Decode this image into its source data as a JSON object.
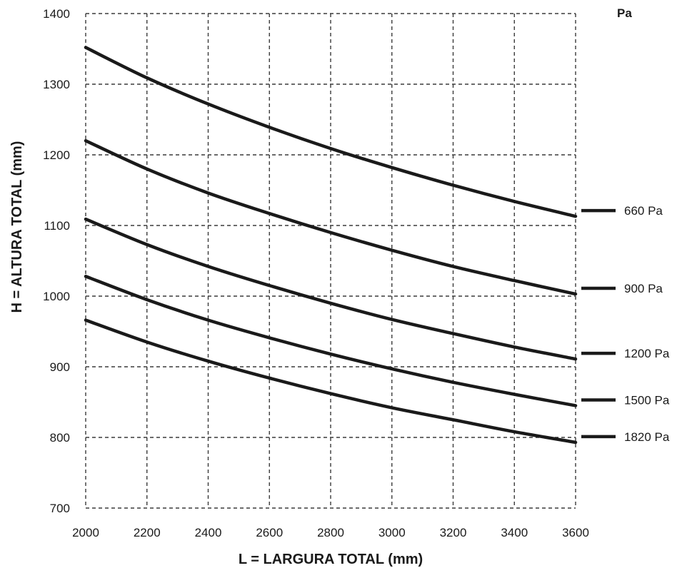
{
  "chart_data": {
    "type": "line",
    "title": "",
    "xlabel": "L = LARGURA  TOTAL (mm)",
    "ylabel": "H = ALTURA TOTAL (mm)",
    "xlim": [
      2000,
      3600
    ],
    "ylim": [
      700,
      1400
    ],
    "x_ticks": [
      2000,
      2200,
      2400,
      2600,
      2800,
      3000,
      3200,
      3400,
      3600
    ],
    "y_ticks": [
      700,
      800,
      900,
      1000,
      1100,
      1200,
      1300,
      1400
    ],
    "grid": true,
    "legend_title": "Pa",
    "legend_position": "right",
    "x": [
      2000,
      2200,
      2400,
      2600,
      2800,
      3000,
      3200,
      3400,
      3600
    ],
    "series": [
      {
        "name": "660 Pa",
        "values": [
          1352,
          1309,
          1272,
          1239,
          1209,
          1182,
          1157,
          1134,
          1113
        ]
      },
      {
        "name": "900 Pa",
        "values": [
          1220,
          1180,
          1146,
          1117,
          1090,
          1065,
          1042,
          1022,
          1003
        ]
      },
      {
        "name": "1200 Pa",
        "values": [
          1109,
          1073,
          1042,
          1015,
          990,
          967,
          947,
          928,
          911
        ]
      },
      {
        "name": "1500 Pa",
        "values": [
          1028,
          995,
          966,
          941,
          918,
          897,
          878,
          861,
          845
        ]
      },
      {
        "name": "1820 Pa",
        "values": [
          966,
          935,
          908,
          884,
          862,
          842,
          825,
          808,
          793
        ]
      }
    ]
  }
}
